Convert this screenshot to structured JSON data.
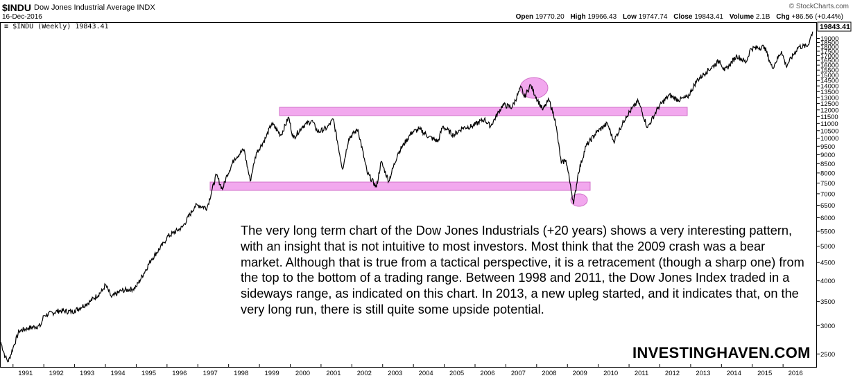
{
  "header": {
    "symbol": "$INDU",
    "name": "Dow Jones Industrial Average",
    "exchange": "INDX",
    "date": "16-Dec-2016",
    "copyright": "© StockCharts.com",
    "open_label": "Open",
    "open": "19770.20",
    "high_label": "High",
    "high": "19966.43",
    "low_label": "Low",
    "low": "19747.74",
    "close_label": "Close",
    "close": "19843.41",
    "volume_label": "Volume",
    "volume": "2.1B",
    "chg_label": "Chg",
    "chg": "+86.56 (+0.44%)"
  },
  "series_label": "$INDU (Weekly) 19843.41",
  "last_price_tag": "19843.41",
  "annotation_text": "The very long term chart of the Dow Jones Industrials (+20 years) shows a very interesting pattern, with an insight that is not intuitive to most investors. Most think that the 2009 crash was a bear market. Although that is true from a tactical perspective, it is a retracement (though a sharp one) from the top to the bottom of a trading range. Between 1998 and 2011, the Dow Jones Index traded in a sideways range, as indicated on this chart. In 2013, a new upleg started, and it indicates that, on the very long run, there is still quite some upside potential.",
  "brand": "INVESTINGHAVEN.COM",
  "colors": {
    "highlight_fill": "#f2a8ee",
    "highlight_stroke": "#d070c8",
    "line": "#000000"
  },
  "chart_data": {
    "type": "line",
    "title": "Dow Jones Industrial Average",
    "y_scale": "log",
    "ylim": [
      2300,
      21000
    ],
    "xlim": [
      1990.6,
      2017.1
    ],
    "y_ticks": [
      2500,
      3000,
      3500,
      4000,
      4500,
      5000,
      5500,
      6000,
      6500,
      7000,
      7500,
      8000,
      8500,
      9000,
      9500,
      10000,
      10500,
      11000,
      11500,
      12000,
      12500,
      13000,
      13500,
      14000,
      14500,
      15000,
      15500,
      16000,
      16500,
      17000,
      17500,
      18000,
      18500,
      19000
    ],
    "x_ticks": [
      "1991",
      "1992",
      "1993",
      "1994",
      "1995",
      "1996",
      "1997",
      "1998",
      "1999",
      "2000",
      "2001",
      "2002",
      "2003",
      "2004",
      "2005",
      "2006",
      "2007",
      "2008",
      "2009",
      "2010",
      "2011",
      "2012",
      "2013",
      "2014",
      "2015",
      "2016"
    ],
    "series": [
      {
        "values": [
          [
            1990.6,
            2700
          ],
          [
            1990.75,
            2450
          ],
          [
            1990.85,
            2380
          ],
          [
            1991.0,
            2600
          ],
          [
            1991.2,
            2900
          ],
          [
            1991.5,
            2950
          ],
          [
            1991.9,
            3000
          ],
          [
            1992.0,
            3200
          ],
          [
            1992.5,
            3300
          ],
          [
            1992.9,
            3280
          ],
          [
            1993.0,
            3300
          ],
          [
            1993.5,
            3500
          ],
          [
            1993.9,
            3750
          ],
          [
            1994.0,
            3900
          ],
          [
            1994.2,
            3600
          ],
          [
            1994.5,
            3750
          ],
          [
            1994.9,
            3800
          ],
          [
            1995.0,
            3850
          ],
          [
            1995.5,
            4600
          ],
          [
            1995.9,
            5100
          ],
          [
            1996.0,
            5300
          ],
          [
            1996.5,
            5650
          ],
          [
            1996.9,
            6450
          ],
          [
            1997.0,
            6500
          ],
          [
            1997.3,
            6400
          ],
          [
            1997.6,
            7900
          ],
          [
            1997.8,
            7200
          ],
          [
            1997.95,
            7900
          ],
          [
            1998.2,
            8800
          ],
          [
            1998.5,
            9300
          ],
          [
            1998.7,
            7600
          ],
          [
            1998.9,
            9100
          ],
          [
            1999.2,
            10000
          ],
          [
            1999.4,
            11000
          ],
          [
            1999.7,
            10200
          ],
          [
            1999.95,
            11450
          ],
          [
            2000.1,
            10000
          ],
          [
            2000.4,
            10800
          ],
          [
            2000.7,
            11200
          ],
          [
            2000.9,
            10400
          ],
          [
            2001.2,
            10700
          ],
          [
            2001.4,
            11300
          ],
          [
            2001.7,
            8200
          ],
          [
            2001.9,
            10000
          ],
          [
            2002.2,
            10600
          ],
          [
            2002.5,
            8000
          ],
          [
            2002.8,
            7300
          ],
          [
            2002.95,
            8600
          ],
          [
            2003.2,
            7600
          ],
          [
            2003.5,
            9100
          ],
          [
            2003.95,
            10400
          ],
          [
            2004.2,
            10600
          ],
          [
            2004.5,
            10100
          ],
          [
            2004.8,
            9800
          ],
          [
            2004.95,
            10800
          ],
          [
            2005.3,
            10200
          ],
          [
            2005.6,
            10700
          ],
          [
            2005.9,
            10800
          ],
          [
            2006.3,
            11300
          ],
          [
            2006.5,
            10800
          ],
          [
            2006.9,
            12400
          ],
          [
            2007.2,
            12200
          ],
          [
            2007.5,
            13900
          ],
          [
            2007.6,
            13000
          ],
          [
            2007.8,
            14100
          ],
          [
            2007.95,
            13200
          ],
          [
            2008.2,
            12000
          ],
          [
            2008.4,
            12800
          ],
          [
            2008.6,
            11300
          ],
          [
            2008.8,
            8500
          ],
          [
            2008.95,
            8700
          ],
          [
            2009.1,
            7400
          ],
          [
            2009.2,
            6550
          ],
          [
            2009.35,
            8000
          ],
          [
            2009.6,
            9500
          ],
          [
            2009.95,
            10400
          ],
          [
            2010.3,
            11000
          ],
          [
            2010.5,
            9800
          ],
          [
            2010.9,
            11500
          ],
          [
            2011.3,
            12700
          ],
          [
            2011.6,
            10700
          ],
          [
            2011.95,
            12200
          ],
          [
            2012.3,
            13200
          ],
          [
            2012.6,
            12800
          ],
          [
            2012.9,
            13000
          ],
          [
            2013.2,
            14500
          ],
          [
            2013.5,
            15300
          ],
          [
            2013.95,
            16500
          ],
          [
            2014.1,
            15400
          ],
          [
            2014.5,
            17000
          ],
          [
            2014.8,
            16300
          ],
          [
            2014.95,
            17800
          ],
          [
            2015.4,
            18000
          ],
          [
            2015.65,
            15700
          ],
          [
            2015.95,
            17500
          ],
          [
            2016.1,
            15900
          ],
          [
            2016.5,
            18000
          ],
          [
            2016.8,
            18100
          ],
          [
            2016.9,
            19200
          ],
          [
            2016.96,
            19843
          ]
        ]
      }
    ]
  }
}
